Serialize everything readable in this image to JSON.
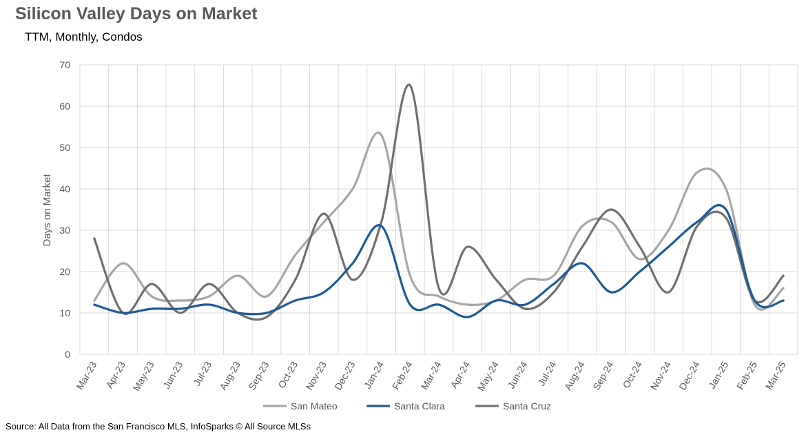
{
  "chart_data": {
    "type": "line",
    "title": "Silicon Valley Days on Market",
    "subtitle": "TTM, Monthly, Condos",
    "ylabel": "Days on Market",
    "xlabel": "",
    "ylim": [
      0,
      70
    ],
    "yticks": [
      0,
      10,
      20,
      30,
      40,
      50,
      60,
      70
    ],
    "grid": true,
    "legend_position": "bottom",
    "categories": [
      "Mar-23",
      "Apr-23",
      "May-23",
      "Jun-23",
      "Jul-23",
      "Aug-23",
      "Sep-23",
      "Oct-23",
      "Nov-23",
      "Dec-23",
      "Jan-24",
      "Feb-24",
      "Mar-24",
      "Apr-24",
      "May-24",
      "Jun-24",
      "Jul-24",
      "Aug-24",
      "Sep-24",
      "Oct-24",
      "Nov-24",
      "Dec-24",
      "Jan-25",
      "Feb-25",
      "Mar-25"
    ],
    "series": [
      {
        "name": "San Mateo",
        "color": "#a6a6a6",
        "values": [
          13,
          22,
          14,
          13,
          14,
          19,
          14,
          24,
          32,
          40,
          53,
          19,
          14,
          12,
          13,
          18,
          19,
          31,
          32,
          23,
          30,
          44,
          40,
          12,
          16
        ]
      },
      {
        "name": "Santa Clara",
        "color": "#1f5a96",
        "values": [
          12,
          10,
          11,
          11,
          12,
          10,
          10,
          13,
          15,
          22,
          31,
          12,
          12,
          9,
          13,
          12,
          17,
          22,
          15,
          20,
          26,
          32,
          35,
          13,
          13
        ]
      },
      {
        "name": "Santa Cruz",
        "color": "#707070",
        "values": [
          28,
          10,
          17,
          10,
          17,
          10,
          9,
          18,
          34,
          18,
          32,
          65,
          16,
          26,
          18,
          11,
          15,
          26,
          35,
          26,
          15,
          31,
          33,
          13,
          19
        ]
      }
    ]
  },
  "source": "Source: All Data from the San Francisco MLS, InfoSparks © All Source MLSs"
}
